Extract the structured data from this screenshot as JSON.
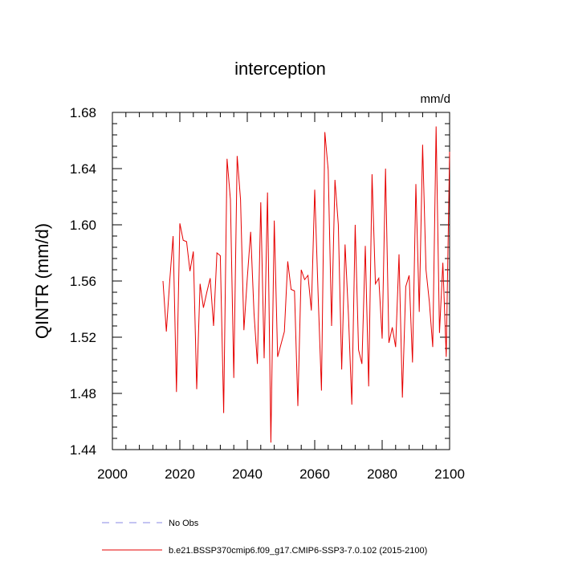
{
  "chart_data": {
    "type": "line",
    "title": "interception",
    "units": "mm/d",
    "xlabel": "",
    "ylabel": "QINTR  (mm/d)",
    "xlim": [
      2000,
      2100
    ],
    "ylim": [
      1.44,
      1.68
    ],
    "xticks": [
      2000,
      2020,
      2040,
      2060,
      2080,
      2100
    ],
    "yticks": [
      "1.44",
      "1.48",
      "1.52",
      "1.56",
      "1.60",
      "1.64",
      "1.68"
    ],
    "grid": false,
    "legend": {
      "placement": "bottom",
      "entries": [
        {
          "label": "No Obs",
          "color": "#8a8ae6",
          "style": "dashed"
        },
        {
          "label": "b.e21.BSSP370cmip6.f09_g17.CMIP6-SSP3-7.0.102 (2015-2100)",
          "color": "#e60000",
          "style": "solid"
        }
      ]
    },
    "series": [
      {
        "name": "b.e21.BSSP370cmip6.f09_g17.CMIP6-SSP3-7.0.102 (2015-2100)",
        "color": "#e60000",
        "x": [
          2015,
          2016,
          2017,
          2018,
          2019,
          2020,
          2021,
          2022,
          2023,
          2024,
          2025,
          2026,
          2027,
          2028,
          2029,
          2030,
          2031,
          2032,
          2033,
          2034,
          2035,
          2036,
          2037,
          2038,
          2039,
          2040,
          2041,
          2042,
          2043,
          2044,
          2045,
          2046,
          2047,
          2048,
          2049,
          2050,
          2051,
          2052,
          2053,
          2054,
          2055,
          2056,
          2057,
          2058,
          2059,
          2060,
          2061,
          2062,
          2063,
          2064,
          2065,
          2066,
          2067,
          2068,
          2069,
          2070,
          2071,
          2072,
          2073,
          2074,
          2075,
          2076,
          2077,
          2078,
          2079,
          2080,
          2081,
          2082,
          2083,
          2084,
          2085,
          2086,
          2087,
          2088,
          2089,
          2090,
          2091,
          2092,
          2093,
          2094,
          2095,
          2096,
          2097,
          2098,
          2099,
          2100
        ],
        "values": [
          1.56,
          1.524,
          1.56,
          1.592,
          1.481,
          1.601,
          1.589,
          1.588,
          1.567,
          1.581,
          1.483,
          1.558,
          1.541,
          1.552,
          1.562,
          1.528,
          1.58,
          1.578,
          1.466,
          1.647,
          1.618,
          1.491,
          1.649,
          1.618,
          1.525,
          1.562,
          1.595,
          1.537,
          1.501,
          1.616,
          1.505,
          1.623,
          1.445,
          1.603,
          1.506,
          1.515,
          1.524,
          1.574,
          1.554,
          1.553,
          1.471,
          1.568,
          1.561,
          1.564,
          1.539,
          1.625,
          1.551,
          1.482,
          1.666,
          1.639,
          1.528,
          1.632,
          1.6,
          1.497,
          1.586,
          1.536,
          1.472,
          1.6,
          1.511,
          1.501,
          1.585,
          1.485,
          1.636,
          1.558,
          1.562,
          1.519,
          1.64,
          1.516,
          1.527,
          1.513,
          1.579,
          1.477,
          1.556,
          1.564,
          1.502,
          1.629,
          1.538,
          1.657,
          1.568,
          1.545,
          1.513,
          1.67,
          1.523,
          1.573,
          1.506,
          1.652
        ]
      }
    ]
  }
}
